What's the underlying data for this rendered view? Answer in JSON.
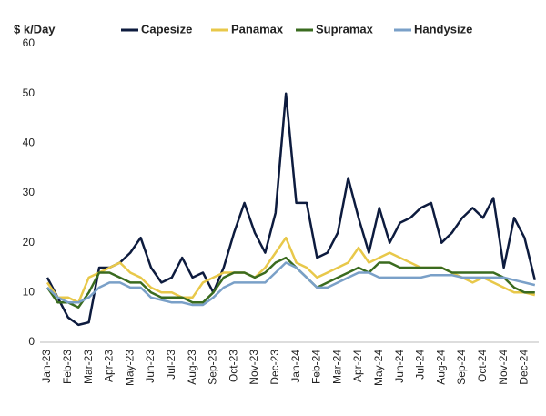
{
  "chart_data": {
    "type": "line",
    "y_label": "$ k/Day",
    "categories": [
      "Jan-23",
      null,
      "Feb-23",
      null,
      "Mar-23",
      null,
      "Apr-23",
      null,
      "May-23",
      null,
      "Jun-23",
      null,
      "Jul-23",
      null,
      "Aug-23",
      null,
      "Sep-23",
      null,
      "Oct-23",
      null,
      "Nov-23",
      null,
      "Dec-23",
      null,
      "Jan-24",
      null,
      "Feb-24",
      null,
      "Mar-24",
      null,
      "Apr-24",
      null,
      "May-24",
      null,
      "Jun-24",
      null,
      "Jul-24",
      null,
      "Aug-24",
      null,
      "Sep-24",
      null,
      "Oct-24",
      null,
      "Nov-24",
      null,
      "Dec-24",
      null
    ],
    "series": [
      {
        "name": "Capesize",
        "color": "#0d1b3e",
        "values": [
          13,
          9,
          5,
          3.5,
          4,
          15,
          15,
          16,
          18,
          21,
          15,
          12,
          13,
          17,
          13,
          14,
          10,
          15,
          22,
          28,
          22,
          18,
          26,
          50,
          28,
          28,
          17,
          18,
          22,
          33,
          25,
          18,
          27,
          20,
          24,
          25,
          27,
          28,
          20,
          22,
          25,
          27,
          25,
          29,
          15,
          25,
          21,
          12.5
        ]
      },
      {
        "name": "Panamax",
        "color": "#e8c84a",
        "values": [
          12,
          9,
          9,
          8,
          13,
          14,
          15,
          16,
          14,
          13,
          11,
          10,
          10,
          9,
          9,
          12,
          13,
          14,
          14,
          14,
          13,
          15,
          18,
          21,
          16,
          15,
          13,
          14,
          15,
          16,
          19,
          16,
          17,
          18,
          17,
          16,
          15,
          15,
          15,
          14,
          13,
          12,
          13,
          12,
          11,
          10,
          10,
          9.5
        ]
      },
      {
        "name": "Supramax",
        "color": "#3a6b1f",
        "values": [
          11,
          8,
          8,
          7,
          10,
          14,
          14,
          13,
          12,
          12,
          10,
          9,
          9,
          9,
          8,
          8,
          10,
          13,
          14,
          14,
          13,
          14,
          16,
          17,
          15,
          13,
          11,
          12,
          13,
          14,
          15,
          14,
          16,
          16,
          15,
          15,
          15,
          15,
          15,
          14,
          14,
          14,
          14,
          14,
          13,
          11,
          10,
          10
        ]
      },
      {
        "name": "Handysize",
        "color": "#7aa0c8",
        "values": [
          11,
          9,
          8,
          8,
          9,
          11,
          12,
          12,
          11,
          11,
          9,
          8.5,
          8,
          8,
          7.5,
          7.5,
          9,
          11,
          12,
          12,
          12,
          12,
          14,
          16,
          15,
          13,
          11,
          11,
          12,
          13,
          14,
          14,
          13,
          13,
          13,
          13,
          13,
          13.5,
          13.5,
          13.5,
          13,
          13,
          13,
          13,
          13,
          12.5,
          12,
          11.5
        ]
      }
    ],
    "ylim": [
      0,
      60
    ],
    "yticks": [
      0,
      10,
      20,
      30,
      40,
      50,
      60
    ],
    "grid": false
  }
}
